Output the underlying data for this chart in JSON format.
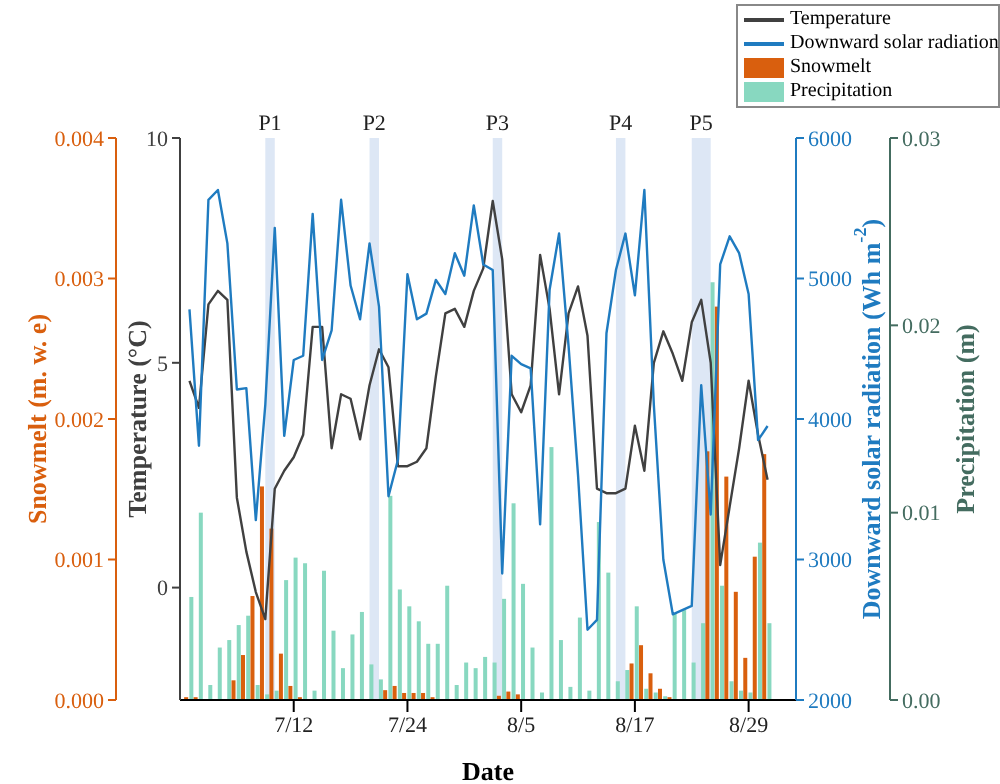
{
  "chart_data": [
    {
      "type": "line",
      "xlabel": "Date",
      "ylabel": "Temperature (°C)",
      "y2label": "Downward solar radiation (Wh m$^{-2}$)",
      "y3label": "Snowmelt (m. w. e)",
      "x": [
        "--07-01",
        "--07-02",
        "--07-03",
        "--07-04",
        "--07-05",
        "--07-06",
        "--07-07",
        "--07-08",
        "--07-09",
        "--07-10",
        "--07-11",
        "--07-12",
        "--07-13",
        "--07-14",
        "--07-15",
        "--07-16",
        "--07-17",
        "--07-18",
        "--07-19",
        "--07-20",
        "--07-21",
        "--07-22",
        "--07-23",
        "--07-24",
        "--07-25",
        "--07-26",
        "--07-27",
        "--07-28",
        "--07-29",
        "--07-30",
        "--07-31",
        "--08-01",
        "--08-02",
        "--08-03",
        "--08-04",
        "--08-05",
        "--08-06",
        "--08-07",
        "--08-08",
        "--08-09",
        "--08-10",
        "--08-11",
        "--08-12",
        "--08-13",
        "--08-14",
        "--08-15",
        "--08-16",
        "--08-17",
        "--08-18",
        "--08-19",
        "--08-20",
        "--08-21",
        "--08-22",
        "--08-23",
        "--08-24",
        "--08-25",
        "--08-26",
        "--08-27",
        "--08-28",
        "--08-29",
        "--08-30",
        "--08-31"
      ],
      "xlim": [
        "--06-30",
        "--09-03"
      ],
      "xticks": [
        {
          "value": "--07-12",
          "label": "7/12"
        },
        {
          "value": "--07-24",
          "label": "7/24"
        },
        {
          "value": "--08-05",
          "label": "8/5"
        },
        {
          "value": "--08-17",
          "label": "8/17"
        },
        {
          "value": "--08-29",
          "label": "8/29"
        }
      ],
      "ylim": [
        -2.5,
        10
      ],
      "yticks": [
        0,
        5,
        10
      ],
      "y2lim": [
        2000,
        6000
      ],
      "y2ticks": [
        2000,
        3000,
        4000,
        5000,
        6000
      ],
      "y3lim": [
        0,
        0.004
      ],
      "y3ticks": [
        {
          "value": 0,
          "label": "0.000"
        },
        {
          "value": 0.001,
          "label": "0.001"
        },
        {
          "value": 0.002,
          "label": "0.002"
        },
        {
          "value": 0.003,
          "label": "0.003"
        },
        {
          "value": 0.004,
          "label": "0.004"
        }
      ],
      "series": [
        {
          "name": "Temperature",
          "axis": "y",
          "color": "#404040",
          "values": [
            4.6,
            4.0,
            6.3,
            6.6,
            6.4,
            2.0,
            0.8,
            -0.1,
            -0.7,
            2.2,
            2.6,
            2.9,
            3.4,
            5.8,
            5.8,
            3.1,
            4.3,
            4.2,
            3.3,
            4.5,
            5.3,
            4.9,
            2.7,
            2.7,
            2.8,
            3.1,
            4.7,
            6.1,
            6.2,
            5.8,
            6.6,
            7.1,
            8.6,
            7.3,
            4.3,
            3.9,
            4.5,
            7.4,
            6.2,
            4.3,
            6.1,
            6.7,
            5.6,
            2.2,
            2.1,
            2.1,
            2.2,
            3.6,
            2.6,
            5.0,
            5.7,
            5.2,
            4.6,
            5.9,
            6.4,
            5.0,
            0.5,
            1.8,
            3.1,
            4.6,
            3.4,
            2.4
          ]
        },
        {
          "name": "Downward solar radiation",
          "axis": "y2",
          "color": "#1f7bc0",
          "values": [
            4780,
            3810,
            5560,
            5630,
            5250,
            4210,
            4220,
            3280,
            4100,
            5360,
            3880,
            4420,
            4450,
            5460,
            4420,
            4630,
            5560,
            4950,
            4710,
            5250,
            4800,
            3450,
            3710,
            5030,
            4710,
            4750,
            4990,
            4890,
            5180,
            5020,
            5520,
            5100,
            5060,
            2900,
            4450,
            4390,
            4360,
            3250,
            4920,
            5320,
            4520,
            3600,
            2500,
            2570,
            4610,
            5060,
            5320,
            4880,
            5630,
            4100,
            3000,
            2610,
            2640,
            2670,
            4240,
            3320,
            5100,
            5300,
            5180,
            4890,
            3850,
            3950
          ]
        },
        {
          "name": "Snowmelt",
          "type": "bar",
          "axis": "y3",
          "color": "#d95f0e",
          "values": [
            2e-05,
            2e-05,
            0,
            0,
            0,
            0.00014,
            0.00032,
            0.00074,
            0.00152,
            0.00122,
            0.00033,
            0.0001,
            2e-05,
            0,
            0,
            0,
            0,
            0,
            0,
            0,
            0,
            7e-05,
            0.0001,
            5e-05,
            5e-05,
            5e-05,
            2e-05,
            0,
            0,
            0,
            0,
            0,
            0,
            3e-05,
            6e-05,
            4e-05,
            0,
            0,
            0,
            0,
            0,
            0,
            0,
            0,
            0,
            0,
            0,
            0.00026,
            0.00039,
            0.00019,
            8e-05,
            2e-05,
            0,
            0,
            0,
            0.00177,
            0.0028,
            0.00159,
            0.00077,
            0.0003,
            0.00102,
            0.00175
          ]
        }
      ],
      "legend": "top right"
    },
    {
      "type": "bar",
      "y2label": "Precipitation (m)",
      "tick_labels": "y",
      "x": [
        "--07-01",
        "--07-02",
        "--07-03",
        "--07-04",
        "--07-05",
        "--07-06",
        "--07-07",
        "--07-08",
        "--07-09",
        "--07-10",
        "--07-11",
        "--07-12",
        "--07-13",
        "--07-14",
        "--07-15",
        "--07-16",
        "--07-17",
        "--07-18",
        "--07-19",
        "--07-20",
        "--07-21",
        "--07-22",
        "--07-23",
        "--07-24",
        "--07-25",
        "--07-26",
        "--07-27",
        "--07-28",
        "--07-29",
        "--07-30",
        "--07-31",
        "--08-01",
        "--08-02",
        "--08-03",
        "--08-04",
        "--08-05",
        "--08-06",
        "--08-07",
        "--08-08",
        "--08-09",
        "--08-10",
        "--08-11",
        "--08-12",
        "--08-13",
        "--08-14",
        "--08-15",
        "--08-16",
        "--08-17",
        "--08-18",
        "--08-19",
        "--08-20",
        "--08-21",
        "--08-22",
        "--08-23",
        "--08-24",
        "--08-25",
        "--08-26",
        "--08-27",
        "--08-28",
        "--08-29",
        "--08-30",
        "--08-31"
      ],
      "xlim": [
        "--06-30",
        "--09-03"
      ],
      "y2lim": [
        0,
        0.03
      ],
      "y2ticks": [
        {
          "value": 0,
          "label": "0.00"
        },
        {
          "value": 0.01,
          "label": "0.01"
        },
        {
          "value": 0.02,
          "label": "0.02"
        },
        {
          "value": 0.03,
          "label": "0.03"
        }
      ],
      "series": [
        {
          "name": "Precipitation",
          "axis": "y2",
          "color": "#88d8c0",
          "values": [
            0.0055,
            0.01,
            0.0008,
            0.0028,
            0.0032,
            0.004,
            0.0045,
            0.0008,
            0.0003,
            0.0005,
            0.0064,
            0.0076,
            0.0073,
            0.0005,
            0.0069,
            0.0037,
            0.0017,
            0.0035,
            0.0047,
            0.0019,
            0.0011,
            0.0109,
            0.0059,
            0.005,
            0.0042,
            0.003,
            0.003,
            0.0061,
            0.0008,
            0.002,
            0.0017,
            0.0023,
            0.002,
            0.0054,
            0.0105,
            0.0062,
            0.0028,
            0.0004,
            0.0135,
            0.0032,
            0.0007,
            0.0044,
            0.0005,
            0.0095,
            0.0068,
            0.001,
            0.0016,
            0.005,
            0.0006,
            0.0004,
            0.0002,
            0.0046,
            0.0048,
            0.002,
            0.0041,
            0.0223,
            0.0061,
            0.001,
            0.0005,
            0.0004,
            0.0084,
            0.0041
          ]
        }
      ],
      "bands": [
        {
          "axis": "x",
          "from": "--07-09",
          "to": "--07-10",
          "label": "P1",
          "color": "#dde7f5"
        },
        {
          "axis": "x",
          "from": "--07-20",
          "to": "--07-21",
          "label": "P2",
          "color": "#dde7f5"
        },
        {
          "axis": "x",
          "from": "--08-02",
          "to": "--08-03",
          "label": "P3",
          "color": "#dde7f5"
        },
        {
          "axis": "x",
          "from": "--08-15",
          "to": "--08-16",
          "label": "P4",
          "color": "#dde7f5"
        },
        {
          "axis": "x",
          "from": "--08-23",
          "to": "--08-25",
          "label": "P5",
          "color": "#dde7f5"
        }
      ],
      "legend": "top right"
    }
  ]
}
